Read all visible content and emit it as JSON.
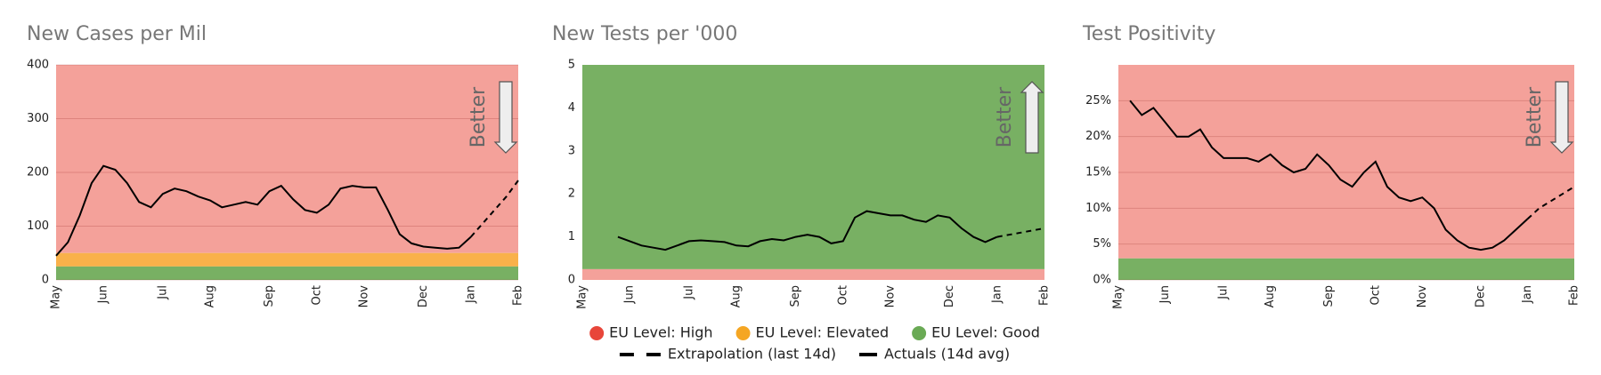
{
  "chart_data": [
    {
      "type": "line",
      "title": "New Cases per Mil",
      "categories": [
        "May",
        null,
        null,
        null,
        "Jun",
        null,
        null,
        null,
        null,
        "Jul",
        null,
        null,
        null,
        "Aug",
        null,
        null,
        null,
        null,
        "Sep",
        null,
        null,
        null,
        "Oct",
        null,
        null,
        null,
        "Nov",
        null,
        null,
        null,
        null,
        "Dec",
        null,
        null,
        null,
        "Jan",
        null,
        null,
        null,
        "Feb"
      ],
      "ylim": [
        0,
        400
      ],
      "yticks": [
        0,
        100,
        200,
        300,
        400
      ],
      "grid": true,
      "bands": [
        {
          "from": 50,
          "to": 400,
          "color": "#f4a19a"
        },
        {
          "from": 25,
          "to": 50,
          "color": "#f9b14a"
        },
        {
          "from": 0,
          "to": 25,
          "color": "#78b063"
        }
      ],
      "annotation": {
        "text": "Better",
        "direction": "down"
      },
      "series": [
        {
          "style": "solid",
          "color": "#000000",
          "values": [
            45,
            70,
            120,
            180,
            212,
            205,
            180,
            145,
            135,
            160,
            170,
            165,
            155,
            148,
            135,
            140,
            145,
            140,
            165,
            175,
            150,
            130,
            125,
            140,
            170,
            175,
            172,
            172,
            130,
            85,
            68,
            62,
            60,
            58,
            60,
            80,
            null,
            null,
            null,
            null
          ]
        },
        {
          "style": "dashed",
          "color": "#000000",
          "values": [
            null,
            null,
            null,
            null,
            null,
            null,
            null,
            null,
            null,
            null,
            null,
            null,
            null,
            null,
            null,
            null,
            null,
            null,
            null,
            null,
            null,
            null,
            null,
            null,
            null,
            null,
            null,
            null,
            null,
            null,
            null,
            null,
            null,
            null,
            null,
            80,
            105,
            130,
            155,
            185
          ]
        }
      ]
    },
    {
      "type": "line",
      "title": "New Tests per '000",
      "categories": [
        "May",
        null,
        null,
        null,
        "Jun",
        null,
        null,
        null,
        null,
        "Jul",
        null,
        null,
        null,
        "Aug",
        null,
        null,
        null,
        null,
        "Sep",
        null,
        null,
        null,
        "Oct",
        null,
        null,
        null,
        "Nov",
        null,
        null,
        null,
        null,
        "Dec",
        null,
        null,
        null,
        "Jan",
        null,
        null,
        null,
        "Feb"
      ],
      "ylim": [
        0,
        5
      ],
      "yticks": [
        0,
        1,
        2,
        3,
        4,
        5
      ],
      "grid": false,
      "bands": [
        {
          "from": 0.25,
          "to": 5,
          "color": "#78b063"
        },
        {
          "from": 0,
          "to": 0.25,
          "color": "#f4a19a"
        }
      ],
      "annotation": {
        "text": "Better",
        "direction": "up"
      },
      "series": [
        {
          "style": "solid",
          "color": "#000000",
          "values": [
            null,
            null,
            null,
            1.0,
            0.9,
            0.8,
            0.75,
            0.7,
            0.8,
            0.9,
            0.92,
            0.9,
            0.88,
            0.8,
            0.78,
            0.9,
            0.95,
            0.92,
            1.0,
            1.05,
            1.0,
            0.85,
            0.9,
            1.45,
            1.6,
            1.55,
            1.5,
            1.5,
            1.4,
            1.35,
            1.5,
            1.45,
            1.2,
            1.0,
            0.88,
            1.0,
            null,
            null,
            null,
            null
          ]
        },
        {
          "style": "dashed",
          "color": "#000000",
          "values": [
            null,
            null,
            null,
            null,
            null,
            null,
            null,
            null,
            null,
            null,
            null,
            null,
            null,
            null,
            null,
            null,
            null,
            null,
            null,
            null,
            null,
            null,
            null,
            null,
            null,
            null,
            null,
            null,
            null,
            null,
            null,
            null,
            null,
            null,
            null,
            1.0,
            1.05,
            1.1,
            1.15,
            1.2
          ]
        }
      ]
    },
    {
      "type": "line",
      "title": "Test Positivity",
      "categories": [
        "May",
        null,
        null,
        null,
        "Jun",
        null,
        null,
        null,
        null,
        "Jul",
        null,
        null,
        null,
        "Aug",
        null,
        null,
        null,
        null,
        "Sep",
        null,
        null,
        null,
        "Oct",
        null,
        null,
        null,
        "Nov",
        null,
        null,
        null,
        null,
        "Dec",
        null,
        null,
        null,
        "Jan",
        null,
        null,
        null,
        "Feb"
      ],
      "ylim": [
        0,
        30
      ],
      "yticks": [
        {
          "value": 0,
          "label": "0%"
        },
        {
          "value": 5,
          "label": "5%"
        },
        {
          "value": 10,
          "label": "10%"
        },
        {
          "value": 15,
          "label": "15%"
        },
        {
          "value": 20,
          "label": "20%"
        },
        {
          "value": 25,
          "label": "25%"
        }
      ],
      "grid": true,
      "bands": [
        {
          "from": 3,
          "to": 30,
          "color": "#f4a19a"
        },
        {
          "from": 0,
          "to": 3,
          "color": "#78b063"
        }
      ],
      "annotation": {
        "text": "Better",
        "direction": "down"
      },
      "series": [
        {
          "style": "solid",
          "color": "#000000",
          "values": [
            null,
            25,
            23,
            24,
            22,
            20,
            20,
            21,
            18.5,
            17,
            17,
            17,
            16.5,
            17.5,
            16,
            15,
            15.5,
            17.5,
            16,
            14,
            13,
            15,
            16.5,
            13,
            11.5,
            11,
            11.5,
            10,
            7,
            5.5,
            4.5,
            4.2,
            4.5,
            5.5,
            7,
            8.5,
            null,
            null,
            null,
            null
          ]
        },
        {
          "style": "dashed",
          "color": "#000000",
          "values": [
            null,
            null,
            null,
            null,
            null,
            null,
            null,
            null,
            null,
            null,
            null,
            null,
            null,
            null,
            null,
            null,
            null,
            null,
            null,
            null,
            null,
            null,
            null,
            null,
            null,
            null,
            null,
            null,
            null,
            null,
            null,
            null,
            null,
            null,
            null,
            8.5,
            10,
            11,
            12,
            13
          ]
        }
      ]
    }
  ],
  "legend": {
    "rows": [
      [
        {
          "marker": "circle",
          "color": "#e8463a",
          "label": "EU Level: High"
        },
        {
          "marker": "circle",
          "color": "#f5a623",
          "label": "EU Level: Elevated"
        },
        {
          "marker": "circle",
          "color": "#6aaa55",
          "label": "EU Level: Good"
        }
      ],
      [
        {
          "marker": "dashed",
          "color": "#000000",
          "label": "Extrapolation (last 14d)"
        },
        {
          "marker": "solid",
          "color": "#000000",
          "label": "Actuals (14d avg)"
        }
      ]
    ]
  }
}
